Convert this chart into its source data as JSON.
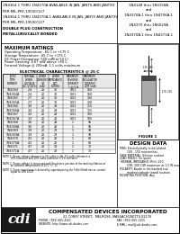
{
  "title_lines": [
    "1N4364-1 THRU 1N4370A AVAILABLE IN JAN, JANTX AND JANTXV",
    "PER MIL-PRF-19500/127",
    "1N4364-1 THRU 1N4370A-1 AVAILABLE IN JAN, JANTX AND JANTXV",
    "PER MIL-PRF-19500/127",
    "DOUBLE PLUG CONSTRUCTION",
    "METALLURGICALLY BONDED"
  ],
  "right_title_lines": [
    "1N4148 thru 1N4158A",
    "and",
    "1N4370A-1 thru 1N4706A-1",
    "and",
    "1N4370 thru 1N6029A",
    "and",
    "1N4370A-1 thru 1N4371A-1"
  ],
  "max_ratings_title": "MAXIMUM RATINGS",
  "max_ratings": [
    "Operating Temperature: -65 C to +175 C",
    "Storage Temperature: -65 C to +175 C",
    "DC Power Dissipation: 500 mW(at 50 C)",
    "Power Derating: 6.67 mW above +50 C",
    "Forward Voltage @ 200mA: 1.1 volts maximum"
  ],
  "elec_char_title": "ELECTRICAL CHARACTERISTICS @ 25 C",
  "table_data": [
    [
      "1N4364",
      "2.4",
      "20",
      "30",
      "0.01",
      "150",
      "100"
    ],
    [
      "1N4364A",
      "2.4",
      "20",
      "30",
      "0.01",
      "150",
      "100"
    ],
    [
      "1N4365",
      "2.7",
      "20",
      "30",
      "0.01",
      "130",
      "130"
    ],
    [
      "1N4365A",
      "2.7",
      "20",
      "30",
      "0.01",
      "130",
      "130"
    ],
    [
      "1N4366",
      "3.0",
      "20",
      "29",
      "0.01",
      "115",
      "115"
    ],
    [
      "1N4366A",
      "3.0",
      "20",
      "29",
      "0.01",
      "115",
      "115"
    ],
    [
      "1N4367",
      "3.3",
      "20",
      "28",
      "0.01",
      "105",
      "105"
    ],
    [
      "1N4367A",
      "3.3",
      "20",
      "28",
      "0.01",
      "105",
      "105"
    ],
    [
      "1N4368",
      "3.6",
      "20",
      "24",
      "1",
      "95",
      "95"
    ],
    [
      "1N4368A",
      "3.6",
      "20",
      "24",
      "1",
      "95",
      "95"
    ],
    [
      "1N4369",
      "3.9",
      "20",
      "23",
      "1",
      "90",
      "90"
    ],
    [
      "1N4369A",
      "3.9",
      "20",
      "23",
      "1",
      "90",
      "90"
    ],
    [
      "1N4370",
      "4.3",
      "20",
      "22",
      "1",
      "80",
      "80"
    ],
    [
      "1N4370A",
      "4.3",
      "20",
      "22",
      "1",
      "80",
      "80"
    ],
    [
      "1N4371",
      "4.7",
      "20",
      "19",
      "1",
      "75",
      "75"
    ],
    [
      "1N4371A",
      "4.7",
      "20",
      "19",
      "1",
      "75",
      "75"
    ]
  ],
  "table_headers_row1": [
    "JEDEC",
    "NOMINAL",
    "ZENER",
    "ZENER",
    "MAXIMUM",
    "MAXIMUM"
  ],
  "table_headers_row2": [
    "TYPE",
    "ZENER",
    "CURRENT",
    "IMPEDANCE",
    "REVERSE",
    "REGULATOR"
  ],
  "table_headers_row3": [
    "NUMBER",
    "VOLTAGE",
    "IZT",
    "ZZT",
    "CURRENT",
    "CURRENT"
  ],
  "table_headers_row4": [
    "",
    "VZ (VOLTS)",
    "(mA)",
    "(OHMS)",
    "1 @ V A",
    "IZM (mA)"
  ],
  "notes": [
    "NOTE 1:  Zener voltage tolerance is 5% suffix is (A), 2% suffix tolerance is 10% tolerance and 20% suffix tolerance is 1% tolerance",
    "NOTE 2:  Zener voltage is measured with the device junction at thermal equilibrium at an ambient temperature of 25 C +/- 1C",
    "NOTE 3:  Zener impedance is derived by superimposing the 1kHz 60mA rms ac current equal to 10% of IZT"
  ],
  "design_data_title": "DESIGN DATA",
  "design_data": [
    "PINS: Electrolytically nickel plated,",
    "        100 - 150 microinches",
    "CASE MATERIAL: Silicone sealant",
    "LEAD FINISH: Tin (pure)",
    "THERMAL IMPEDANCE (Rth): 250",
    "        C/W, 300 C/W maximum at 1.5 W max",
    "POLARITY: Anode is the banded end,",
    "        marked cathode (band) location",
    "MOUNTING POSITION: Any"
  ],
  "figure_label": "FIGURE 1",
  "company_name": "COMPENSATED DEVICES INCORPORATED",
  "company_address": "22 COREY STREET,  MELROSE, MASSACHUSETTS 02176",
  "company_phone": "PHONE: (781) 665-4321",
  "company_fax": "FAX: (781) 665-1155",
  "company_web": "WEBSITE: http://www.cdi-diodes.com",
  "company_email": "E-MAIL: mail@cdi-diodes.com",
  "bg_color": "#ffffff",
  "border_color": "#000000",
  "text_color": "#000000"
}
